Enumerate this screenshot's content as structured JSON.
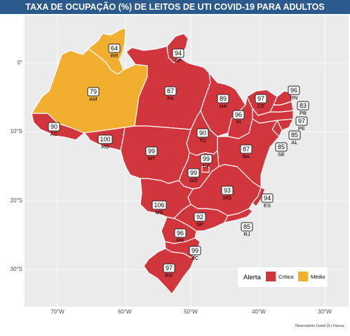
{
  "title": "TAXA DE OCUPAÇÃO (%) DE LEITOS DE UTI COVID-19 PARA ADULTOS",
  "colors": {
    "critico": "#d1363d",
    "medio": "#f2ae2e",
    "panel": "#ebebeb",
    "border": "#ffffff"
  },
  "axes": {
    "lat_ticks": [
      "0°",
      "10°S",
      "20°S",
      "30°S"
    ],
    "lon_ticks": [
      "70°W",
      "60°W",
      "50°W",
      "40°W",
      "30°W"
    ]
  },
  "legend": {
    "title": "Alerta",
    "items": [
      "Crítico",
      "Médio"
    ]
  },
  "states": [
    {
      "uf": "RR",
      "value": "64",
      "alert": "Médio"
    },
    {
      "uf": "AP",
      "value": "94",
      "alert": "Crítico"
    },
    {
      "uf": "AM",
      "value": "79",
      "alert": "Médio"
    },
    {
      "uf": "PA",
      "value": "87",
      "alert": "Crítico"
    },
    {
      "uf": "MA",
      "value": "89",
      "alert": "Crítico"
    },
    {
      "uf": "CE",
      "value": "97",
      "alert": "Crítico"
    },
    {
      "uf": "RN",
      "value": "96",
      "alert": "Crítico"
    },
    {
      "uf": "PB",
      "value": "83",
      "alert": "Crítico"
    },
    {
      "uf": "PI",
      "value": "96",
      "alert": "Crítico"
    },
    {
      "uf": "PE",
      "value": "97",
      "alert": "Crítico"
    },
    {
      "uf": "AL",
      "value": "85",
      "alert": "Crítico"
    },
    {
      "uf": "SE",
      "value": "85",
      "alert": "Crítico"
    },
    {
      "uf": "AC",
      "value": "90",
      "alert": "Crítico"
    },
    {
      "uf": "RO",
      "value": "100",
      "alert": "Crítico"
    },
    {
      "uf": "TO",
      "value": "90",
      "alert": "Crítico"
    },
    {
      "uf": "BA",
      "value": "87",
      "alert": "Crítico"
    },
    {
      "uf": "MT",
      "value": "99",
      "alert": "Crítico"
    },
    {
      "uf": "DF",
      "value": "99",
      "alert": "Crítico"
    },
    {
      "uf": "GO",
      "value": "99",
      "alert": "Crítico"
    },
    {
      "uf": "MG",
      "value": "93",
      "alert": "Crítico"
    },
    {
      "uf": "ES",
      "value": "94",
      "alert": "Crítico"
    },
    {
      "uf": "MS",
      "value": "106",
      "alert": "Crítico"
    },
    {
      "uf": "SP",
      "value": "92",
      "alert": "Crítico"
    },
    {
      "uf": "RJ",
      "value": "85",
      "alert": "Crítico"
    },
    {
      "uf": "PR",
      "value": "96",
      "alert": "Crítico"
    },
    {
      "uf": "SC",
      "value": "99",
      "alert": "Crítico"
    },
    {
      "uf": "RS",
      "value": "97",
      "alert": "Crítico"
    }
  ],
  "source": "Observatório Covid-19 | Fiocruz"
}
